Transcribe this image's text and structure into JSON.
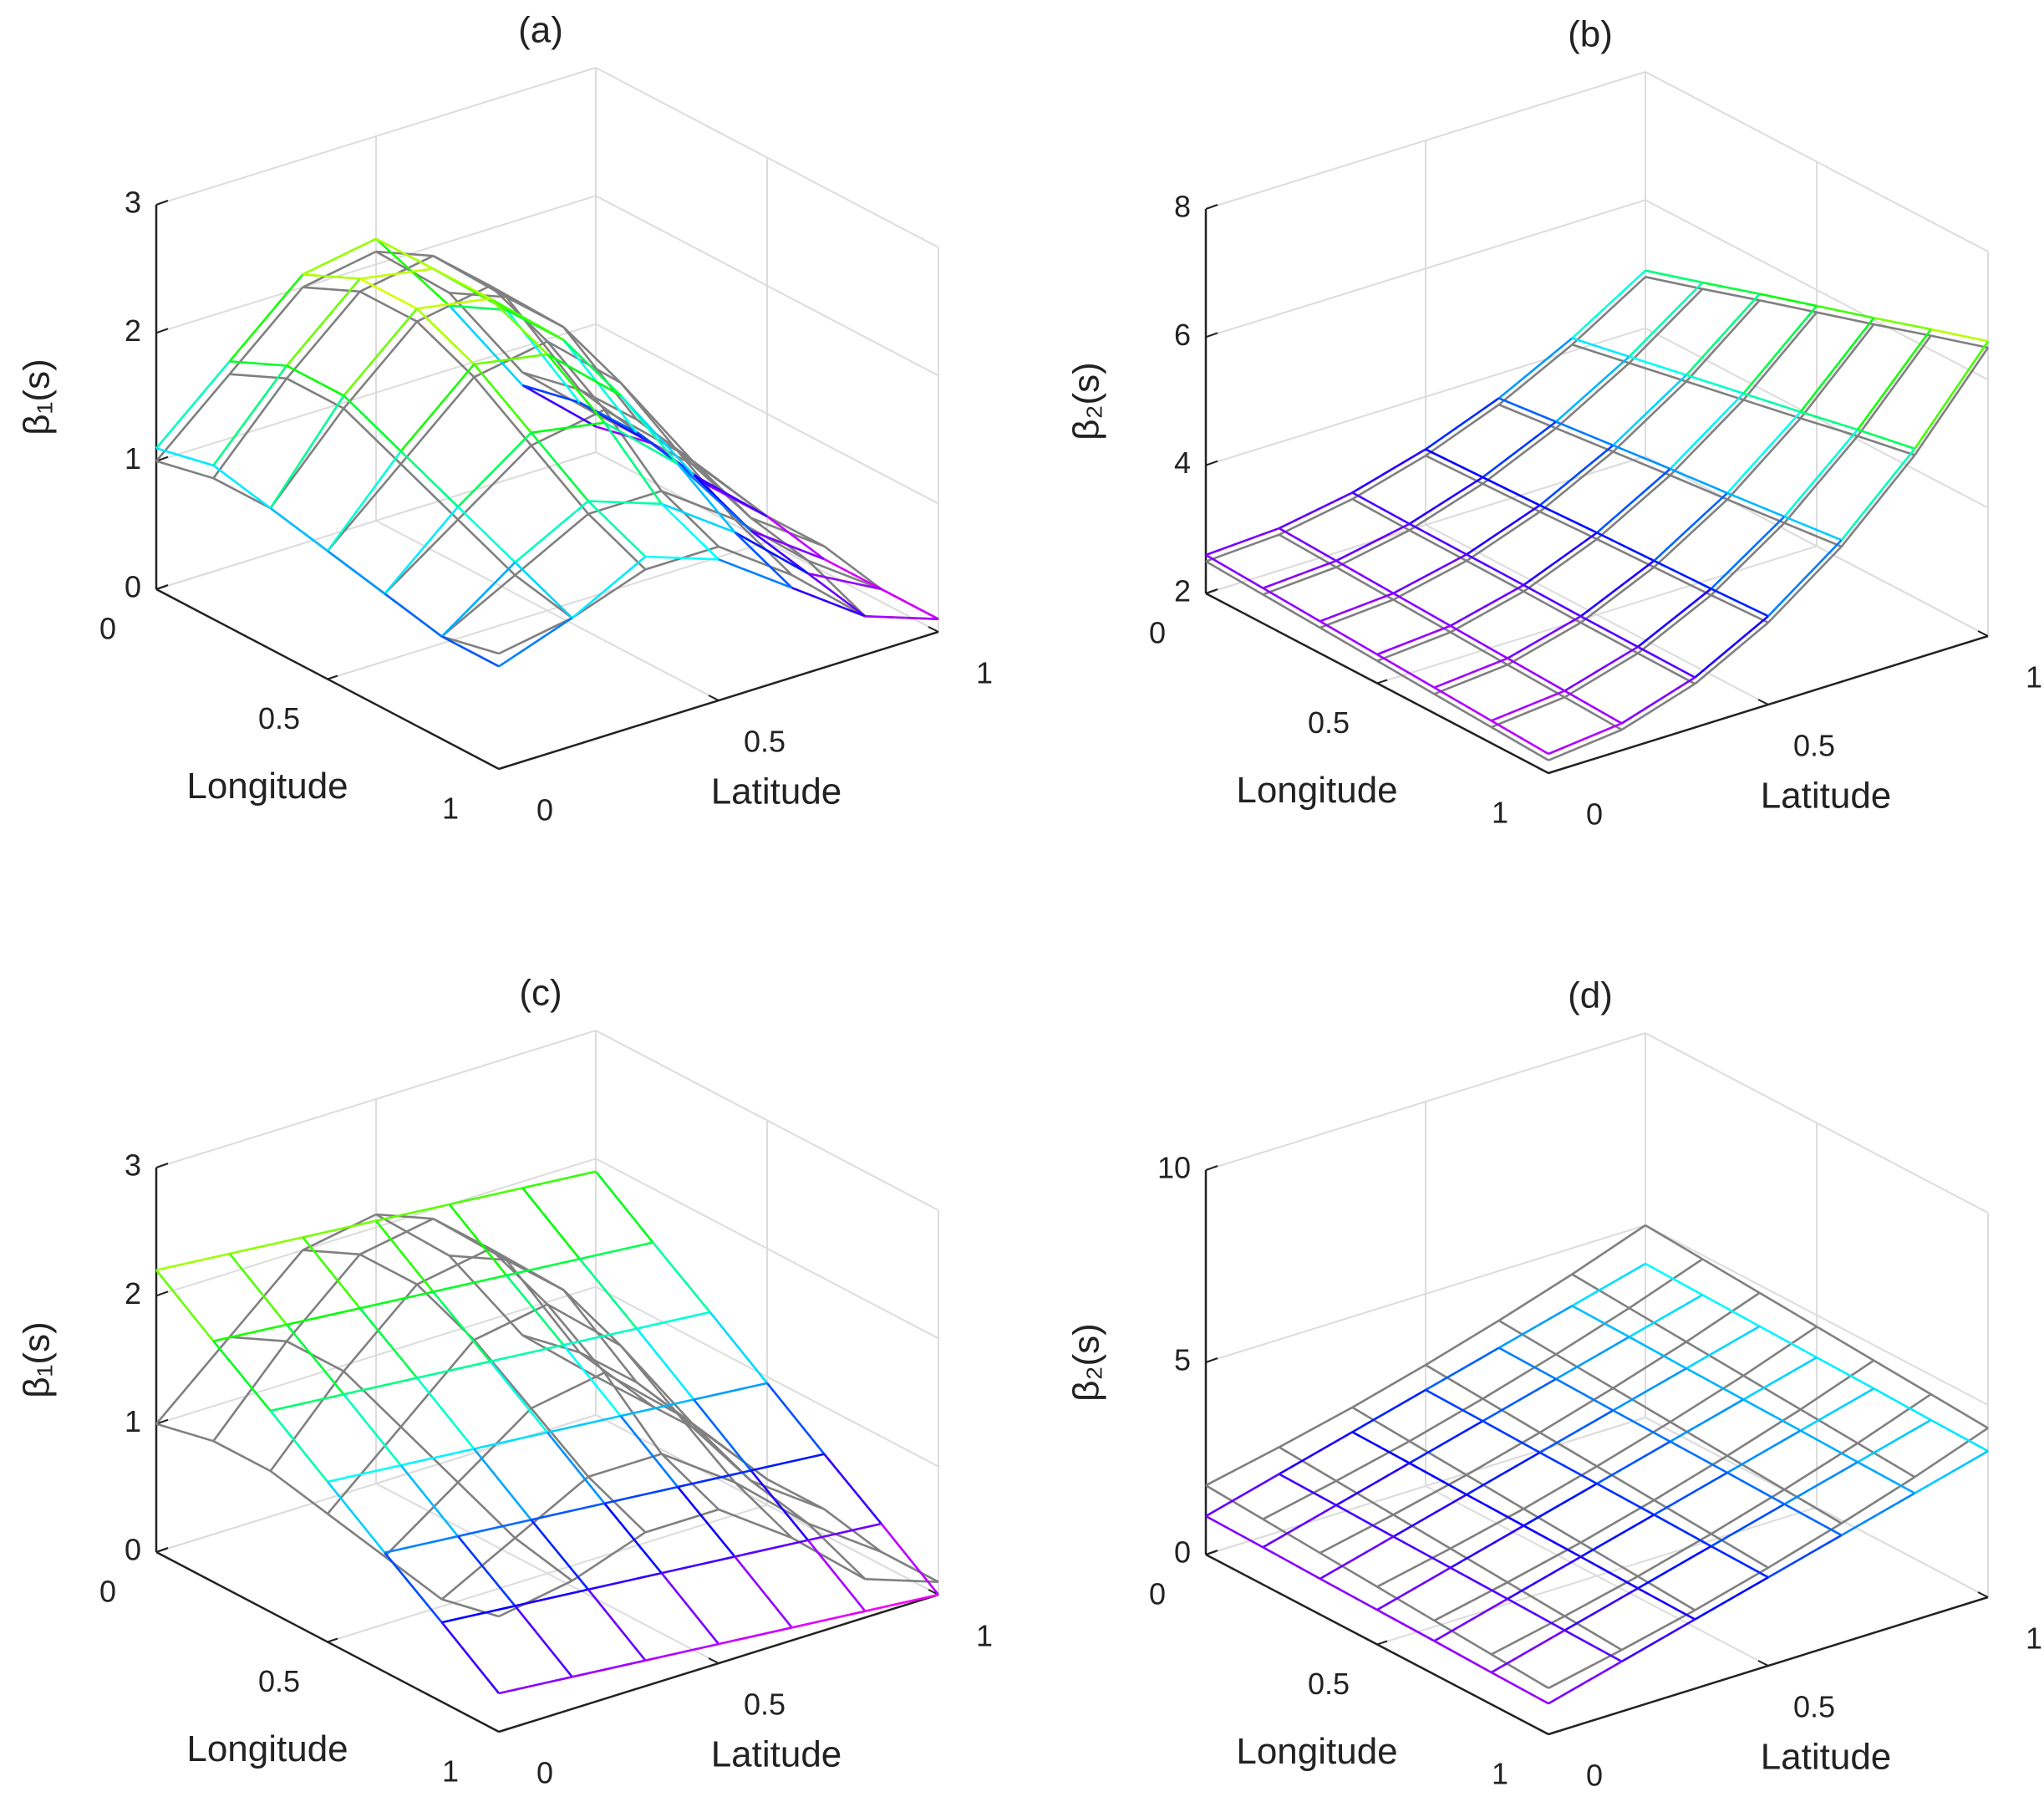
{
  "chart_data": [
    {
      "type": "surface",
      "title": "(a)",
      "xlabel": "Longitude",
      "ylabel": "Latitude",
      "zlabel": "β₁(s)",
      "x": [
        0,
        0.1667,
        0.3333,
        0.5,
        0.6667,
        0.8333,
        1
      ],
      "y": [
        0,
        0.1667,
        0.3333,
        0.5,
        0.6667,
        0.8333,
        1
      ],
      "xlim": [
        0,
        1
      ],
      "xticks": [
        0,
        0.5,
        1
      ],
      "ylim": [
        0,
        1
      ],
      "yticks": [
        0,
        0.5,
        1
      ],
      "zlim": [
        0,
        3
      ],
      "zticks": [
        0,
        1,
        2,
        3
      ],
      "grid": true,
      "series": [
        {
          "color": "#808080",
          "z": [
            [
              1.0,
              1.5,
              2.0,
              2.1,
              1.6,
              0.8,
              0.3
            ],
            [
              1.1,
              1.7,
              2.2,
              2.3,
              1.8,
              0.9,
              0.3
            ],
            [
              1.1,
              1.7,
              2.2,
              2.3,
              1.8,
              0.9,
              0.3
            ],
            [
              1.0,
              1.5,
              2.0,
              2.1,
              1.6,
              0.8,
              0.2
            ],
            [
              0.9,
              1.3,
              1.7,
              1.8,
              1.3,
              0.6,
              0.2
            ],
            [
              0.8,
              1.1,
              1.4,
              1.4,
              1.0,
              0.5,
              0.1
            ],
            [
              0.9,
              1.0,
              1.2,
              1.2,
              0.8,
              0.3,
              0.1
            ]
          ]
        },
        {
          "colormap": "hsv",
          "z": [
            [
              1.1,
              1.6,
              2.1,
              2.2,
              1.5,
              0.7,
              0.2
            ],
            [
              1.2,
              1.8,
              2.3,
              2.2,
              1.7,
              0.8,
              0.3
            ],
            [
              1.1,
              1.8,
              2.3,
              2.2,
              1.7,
              0.8,
              0.2
            ],
            [
              1.0,
              1.6,
              2.1,
              2.0,
              1.5,
              0.7,
              0.2
            ],
            [
              0.9,
              1.4,
              1.8,
              1.7,
              1.2,
              0.5,
              0.1
            ],
            [
              0.8,
              1.2,
              1.5,
              1.3,
              0.9,
              0.4,
              0.1
            ],
            [
              0.8,
              1.0,
              1.3,
              1.1,
              0.7,
              0.3,
              0.1
            ]
          ]
        }
      ]
    },
    {
      "type": "surface",
      "title": "(b)",
      "xlabel": "Longitude",
      "ylabel": "Latitude",
      "zlabel": "β₂(s)",
      "x": [
        0,
        0.1667,
        0.3333,
        0.5,
        0.6667,
        0.8333,
        1
      ],
      "y": [
        0,
        0.1667,
        0.3333,
        0.5,
        0.6667,
        0.8333,
        1
      ],
      "xlim": [
        0,
        1
      ],
      "xticks": [
        0,
        0.5,
        1
      ],
      "ylim": [
        0,
        1
      ],
      "yticks": [
        0,
        0.5,
        1
      ],
      "zlim": [
        2,
        8
      ],
      "zticks": [
        2,
        4,
        6,
        8
      ],
      "grid": true,
      "series": [
        {
          "color": "#808080",
          "z": [
            [
              2.5,
              2.56,
              2.76,
              3.08,
              3.52,
              4.1,
              4.8
            ],
            [
              2.45,
              2.52,
              2.74,
              3.11,
              3.62,
              4.28,
              5.08
            ],
            [
              2.4,
              2.48,
              2.73,
              3.14,
              3.72,
              4.46,
              5.37
            ],
            [
              2.35,
              2.44,
              2.72,
              3.18,
              3.82,
              4.64,
              5.65
            ],
            [
              2.3,
              2.4,
              2.7,
              3.21,
              3.91,
              4.82,
              5.93
            ],
            [
              2.25,
              2.36,
              2.69,
              3.24,
              4.01,
              5.01,
              6.22
            ],
            [
              2.2,
              2.32,
              2.68,
              3.28,
              4.11,
              5.18,
              6.5
            ]
          ]
        },
        {
          "colormap": "hsv",
          "z": [
            [
              2.6,
              2.66,
              2.86,
              3.18,
              3.62,
              4.2,
              4.9
            ],
            [
              2.55,
              2.62,
              2.84,
              3.21,
              3.72,
              4.38,
              5.18
            ],
            [
              2.5,
              2.58,
              2.83,
              3.24,
              3.82,
              4.56,
              5.47
            ],
            [
              2.45,
              2.54,
              2.82,
              3.28,
              3.92,
              4.74,
              5.75
            ],
            [
              2.4,
              2.5,
              2.8,
              3.31,
              4.01,
              4.92,
              6.03
            ],
            [
              2.35,
              2.46,
              2.79,
              3.34,
              4.11,
              5.11,
              6.32
            ],
            [
              2.3,
              2.42,
              2.78,
              3.38,
              4.21,
              5.28,
              6.6
            ]
          ]
        }
      ]
    },
    {
      "type": "surface",
      "title": "(c)",
      "xlabel": "Longitude",
      "ylabel": "Latitude",
      "zlabel": "β₁(s)",
      "x": [
        0,
        0.1667,
        0.3333,
        0.5,
        0.6667,
        0.8333,
        1
      ],
      "y": [
        0,
        0.1667,
        0.3333,
        0.5,
        0.6667,
        0.8333,
        1
      ],
      "xlim": [
        0,
        1
      ],
      "xticks": [
        0,
        0.5,
        1
      ],
      "ylim": [
        0,
        1
      ],
      "yticks": [
        0,
        0.5,
        1
      ],
      "zlim": [
        0,
        3
      ],
      "zticks": [
        0,
        1,
        2,
        3
      ],
      "grid": true,
      "series": [
        {
          "color": "#808080",
          "z": [
            [
              1.0,
              1.5,
              2.0,
              2.1,
              1.6,
              0.8,
              0.3
            ],
            [
              1.1,
              1.7,
              2.2,
              2.3,
              1.8,
              0.9,
              0.3
            ],
            [
              1.1,
              1.7,
              2.2,
              2.3,
              1.8,
              0.9,
              0.3
            ],
            [
              1.0,
              1.5,
              2.0,
              2.1,
              1.6,
              0.8,
              0.2
            ],
            [
              0.9,
              1.3,
              1.7,
              1.8,
              1.3,
              0.6,
              0.2
            ],
            [
              0.8,
              1.1,
              1.4,
              1.4,
              1.0,
              0.5,
              0.1
            ],
            [
              0.9,
              1.0,
              1.2,
              1.2,
              0.8,
              0.3,
              0.1
            ]
          ]
        },
        {
          "colormap": "hsv",
          "z": [
            [
              2.2,
              2.15,
              2.1,
              2.05,
              2.0,
              1.95,
              1.9
            ],
            [
              1.88,
              1.83,
              1.78,
              1.73,
              1.68,
              1.63,
              1.58
            ],
            [
              1.57,
              1.52,
              1.47,
              1.42,
              1.37,
              1.32,
              1.27
            ],
            [
              1.25,
              1.2,
              1.15,
              1.1,
              1.05,
              1.0,
              0.95
            ],
            [
              0.93,
              0.88,
              0.83,
              0.78,
              0.73,
              0.68,
              0.63
            ],
            [
              0.62,
              0.57,
              0.52,
              0.47,
              0.42,
              0.37,
              0.32
            ],
            [
              0.3,
              0.25,
              0.2,
              0.15,
              0.1,
              0.05,
              0.0
            ]
          ]
        }
      ]
    },
    {
      "type": "surface",
      "title": "(d)",
      "xlabel": "Longitude",
      "ylabel": "Latitude",
      "zlabel": "β₂(s)",
      "x": [
        0,
        0.1667,
        0.3333,
        0.5,
        0.6667,
        0.8333,
        1
      ],
      "y": [
        0,
        0.1667,
        0.3333,
        0.5,
        0.6667,
        0.8333,
        1
      ],
      "xlim": [
        0,
        1
      ],
      "xticks": [
        0,
        0.5,
        1
      ],
      "ylim": [
        0,
        1
      ],
      "yticks": [
        0,
        0.5,
        1
      ],
      "zlim": [
        0,
        10
      ],
      "zticks": [
        0,
        5,
        10
      ],
      "grid": true,
      "series": [
        {
          "color": "#808080",
          "z": [
            [
              1.8,
              2.2,
              2.64,
              3.15,
              3.71,
              4.32,
              5.0
            ],
            [
              1.7,
              2.1,
              2.54,
              3.05,
              3.61,
              4.22,
              4.9
            ],
            [
              1.6,
              2.0,
              2.44,
              2.95,
              3.51,
              4.12,
              4.8
            ],
            [
              1.5,
              1.9,
              2.34,
              2.85,
              3.41,
              4.02,
              4.7
            ],
            [
              1.4,
              1.8,
              2.24,
              2.75,
              3.31,
              3.92,
              4.6
            ],
            [
              1.3,
              1.7,
              2.14,
              2.65,
              3.21,
              3.82,
              4.5
            ],
            [
              1.2,
              1.6,
              2.04,
              2.55,
              3.11,
              3.72,
              4.4
            ]
          ]
        },
        {
          "colormap": "hsv",
          "z": [
            [
              1.0,
              1.5,
              2.0,
              2.5,
              3.0,
              3.5,
              4.0
            ],
            [
              0.97,
              1.47,
              1.97,
              2.47,
              2.97,
              3.47,
              3.97
            ],
            [
              0.93,
              1.43,
              1.93,
              2.43,
              2.93,
              3.43,
              3.93
            ],
            [
              0.9,
              1.4,
              1.9,
              2.4,
              2.9,
              3.4,
              3.9
            ],
            [
              0.87,
              1.37,
              1.87,
              2.37,
              2.87,
              3.37,
              3.87
            ],
            [
              0.83,
              1.33,
              1.83,
              2.33,
              2.83,
              3.33,
              3.83
            ],
            [
              0.8,
              1.3,
              1.8,
              2.3,
              2.8,
              3.3,
              3.8
            ]
          ]
        }
      ]
    }
  ]
}
